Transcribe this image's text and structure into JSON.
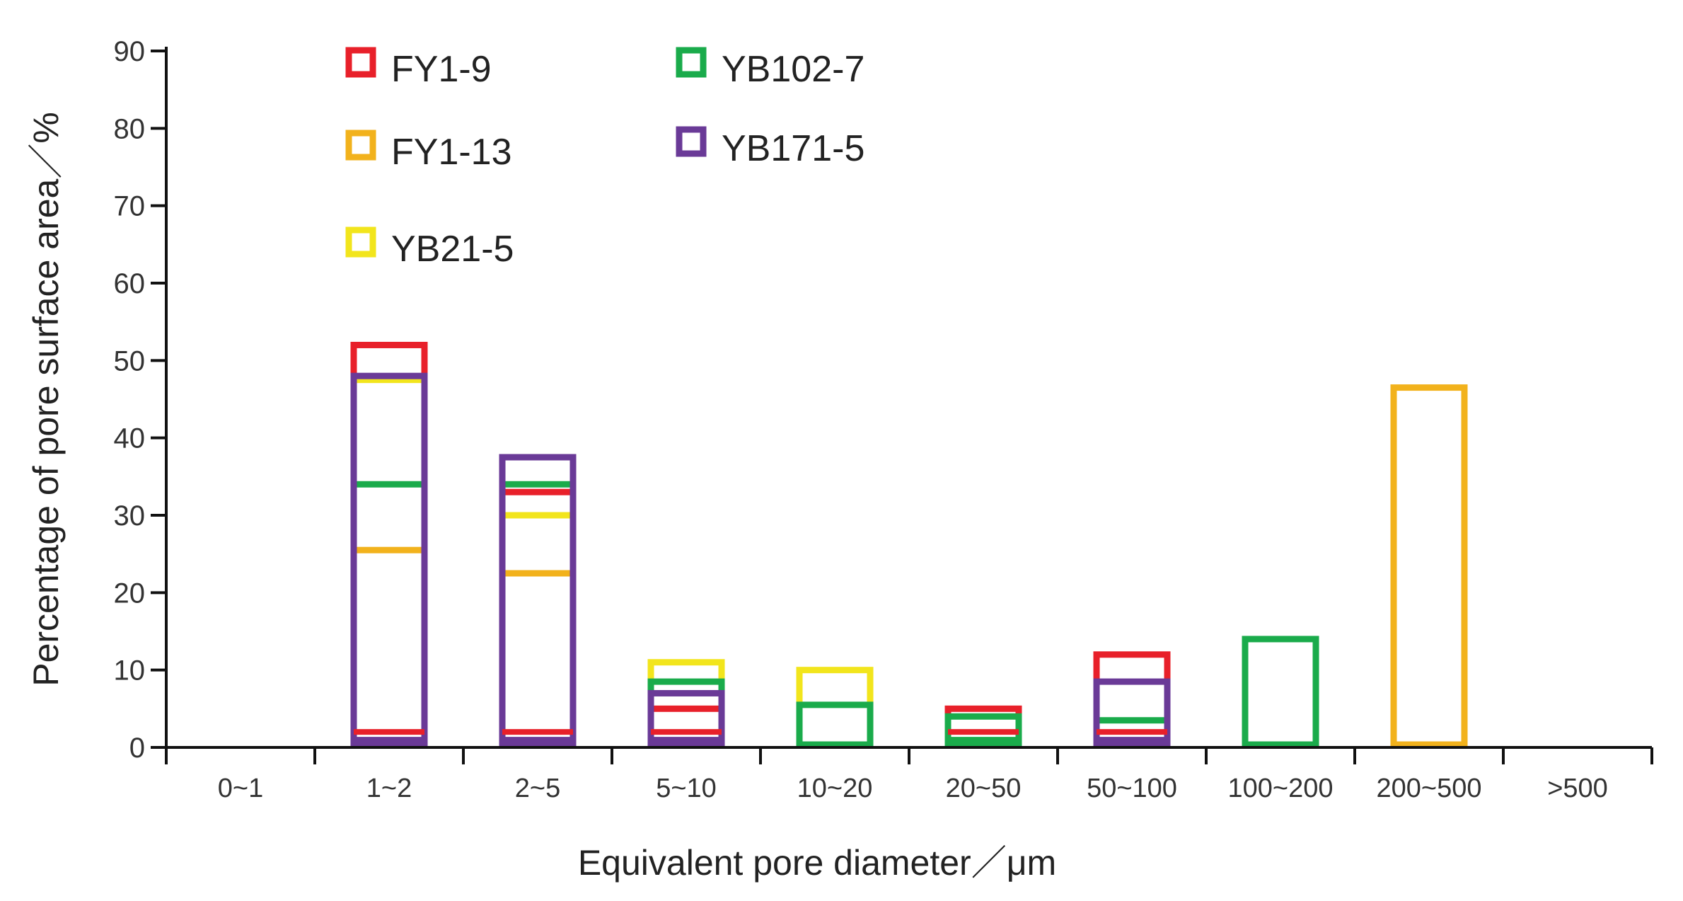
{
  "chart_data": {
    "type": "bar",
    "title": "",
    "xlabel": "Equivalent pore diameter／μm",
    "ylabel": "Percentage of pore surface area／%",
    "ylim": [
      0,
      90
    ],
    "yticks": [
      0,
      10,
      20,
      30,
      40,
      50,
      60,
      70,
      80,
      90
    ],
    "categories": [
      "0~1",
      "1~2",
      "2~5",
      "5~10",
      "10~20",
      "20~50",
      "50~100",
      "100~200",
      "200~500",
      ">500"
    ],
    "legend_position": "top-left",
    "grid": false,
    "style": "overlaid open bars (outline only)",
    "series": [
      {
        "name": "FY1-9",
        "color": "#e8202a",
        "values": [
          0,
          52,
          33,
          5,
          0,
          5,
          12,
          0,
          0,
          0
        ]
      },
      {
        "name": "FY1-13",
        "color": "#f2b21c",
        "values": [
          0,
          25.5,
          22.5,
          0,
          0,
          0,
          0,
          0,
          46.5,
          0
        ]
      },
      {
        "name": "YB21-5",
        "color": "#f2e51c",
        "values": [
          0,
          47.5,
          30,
          11,
          10,
          0,
          0,
          0,
          0,
          0
        ]
      },
      {
        "name": "YB102-7",
        "color": "#1aab4b",
        "values": [
          0,
          34,
          34,
          8.5,
          5.5,
          4,
          3.5,
          14,
          0,
          0
        ]
      },
      {
        "name": "YB171-5",
        "color": "#6a3a97",
        "values": [
          0,
          48,
          37.5,
          7,
          0,
          0,
          8.5,
          0,
          0,
          0
        ]
      }
    ],
    "baseline_lines": [
      {
        "category": "1~2",
        "lines": [
          {
            "value": 2,
            "series": "FY1-9"
          },
          {
            "value": 1,
            "series": "YB171-5"
          }
        ]
      },
      {
        "category": "2~5",
        "lines": [
          {
            "value": 2,
            "series": "FY1-9"
          },
          {
            "value": 1,
            "series": "YB171-5"
          }
        ]
      },
      {
        "category": "5~10",
        "lines": [
          {
            "value": 2,
            "series": "FY1-9"
          },
          {
            "value": 1,
            "series": "YB171-5"
          }
        ]
      },
      {
        "category": "20~50",
        "lines": [
          {
            "value": 2,
            "series": "FY1-9"
          },
          {
            "value": 1,
            "series": "YB102-7"
          }
        ]
      },
      {
        "category": "50~100",
        "lines": [
          {
            "value": 2,
            "series": "FY1-9"
          },
          {
            "value": 1,
            "series": "YB171-5"
          }
        ]
      }
    ]
  }
}
